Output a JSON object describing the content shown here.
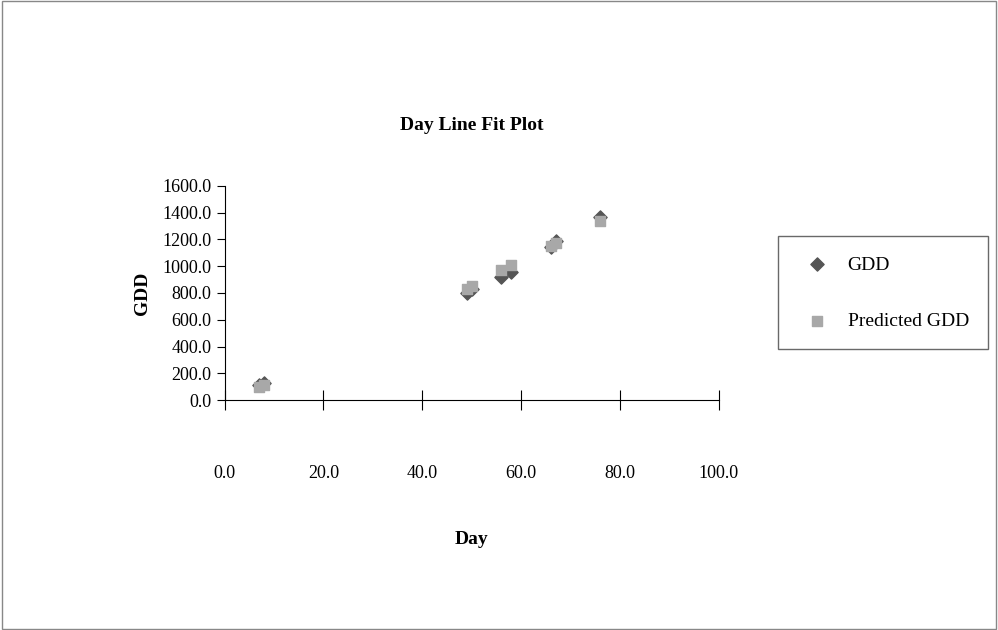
{
  "chart_data": {
    "type": "scatter",
    "title": "Day Line Fit Plot",
    "x_label": "Day",
    "y_label": "GDD",
    "series": [
      {
        "name": "GDD",
        "color": "#555555",
        "marker": "diamond",
        "x": [
          7,
          8,
          49,
          50,
          56,
          58,
          66,
          67,
          76
        ],
        "values": [
          110,
          130,
          800,
          830,
          920,
          960,
          1140,
          1190,
          1370
        ]
      },
      {
        "name": "Predicted GDD",
        "color": "#a8a8a8",
        "marker": "square",
        "x": [
          7,
          8,
          49,
          50,
          56,
          58,
          66,
          67,
          76
        ],
        "values": [
          95,
          115,
          830,
          850,
          970,
          1010,
          1150,
          1170,
          1340
        ]
      }
    ],
    "xlim": [
      0,
      100
    ],
    "xticks": [
      {
        "value": 0,
        "label": "0.0"
      },
      {
        "value": 20,
        "label": "20.0"
      },
      {
        "value": 40,
        "label": "40.0"
      },
      {
        "value": 60,
        "label": "60.0"
      },
      {
        "value": 80,
        "label": "80.0"
      },
      {
        "value": 100,
        "label": "100.0"
      }
    ],
    "ylim": [
      0,
      1600
    ],
    "yticks": [
      {
        "value": 0,
        "label": "0.0"
      },
      {
        "value": 200,
        "label": "200.0"
      },
      {
        "value": 400,
        "label": "400.0"
      },
      {
        "value": 600,
        "label": "600.0"
      },
      {
        "value": 800,
        "label": "800.0"
      },
      {
        "value": 1000,
        "label": "1000.0"
      },
      {
        "value": 1200,
        "label": "1200.0"
      },
      {
        "value": 1400,
        "label": "1400.0"
      },
      {
        "value": 1600,
        "label": "1600.0"
      }
    ],
    "grid": false,
    "legend": "right"
  }
}
